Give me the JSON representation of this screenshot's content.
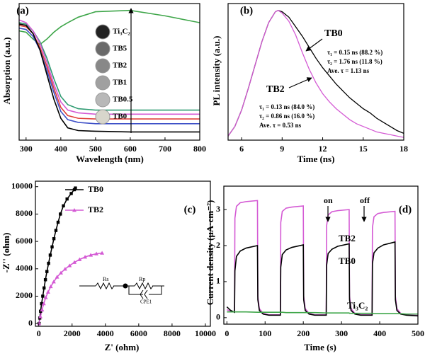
{
  "chart_data": [
    {
      "type": "line",
      "title": "(a)",
      "xlabel": "Wavelength (nm)",
      "ylabel": "Absorption (a.u.)",
      "x": [
        280,
        300,
        320,
        340,
        360,
        380,
        400,
        420,
        450,
        500,
        600,
        700,
        800
      ],
      "xlim": [
        280,
        800
      ],
      "xticks": [
        300,
        400,
        500,
        600,
        700,
        800
      ],
      "ylim": [
        0,
        1
      ],
      "series": [
        {
          "name": "Ti₃C₂",
          "color": "#3fa64a",
          "values": [
            0.8,
            0.79,
            0.74,
            0.7,
            0.74,
            0.79,
            0.83,
            0.86,
            0.9,
            0.94,
            0.95,
            0.91,
            0.86
          ]
        },
        {
          "name": "TB5",
          "color": "#2f9b72",
          "values": [
            0.86,
            0.85,
            0.8,
            0.72,
            0.6,
            0.45,
            0.32,
            0.26,
            0.23,
            0.22,
            0.22,
            0.22,
            0.22
          ]
        },
        {
          "name": "TB2",
          "color": "#d45ad4",
          "values": [
            0.88,
            0.86,
            0.8,
            0.71,
            0.57,
            0.41,
            0.28,
            0.22,
            0.2,
            0.19,
            0.19,
            0.19,
            0.19
          ]
        },
        {
          "name": "TB1",
          "color": "#e0403a",
          "values": [
            0.84,
            0.83,
            0.78,
            0.68,
            0.54,
            0.38,
            0.24,
            0.18,
            0.16,
            0.155,
            0.155,
            0.155,
            0.155
          ]
        },
        {
          "name": "TB0.5",
          "color": "#3f51c8",
          "values": [
            0.82,
            0.81,
            0.76,
            0.66,
            0.51,
            0.35,
            0.21,
            0.15,
            0.13,
            0.12,
            0.12,
            0.12,
            0.12
          ]
        },
        {
          "name": "TB0",
          "color": "#000000",
          "values": [
            0.85,
            0.84,
            0.78,
            0.66,
            0.48,
            0.3,
            0.16,
            0.09,
            0.07,
            0.065,
            0.06,
            0.06,
            0.06
          ]
        }
      ]
    },
    {
      "type": "line",
      "title": "(b)",
      "xlabel": "Time (ns)",
      "ylabel": "PL intensity (a.u.)",
      "x": [
        5,
        5.5,
        6,
        6.5,
        7,
        7.5,
        8,
        8.5,
        8.7,
        9,
        9.5,
        10,
        10.5,
        11,
        11.5,
        12,
        12.5,
        13,
        13.5,
        14,
        14.5,
        15,
        15.5,
        16,
        16.5,
        17,
        17.5,
        18
      ],
      "xlim": [
        5,
        18
      ],
      "xticks": [
        6,
        9,
        12,
        15,
        18
      ],
      "ylim": [
        0,
        1
      ],
      "series": [
        {
          "name": "TB0",
          "color": "#000000",
          "values": [
            0.03,
            0.1,
            0.22,
            0.38,
            0.55,
            0.72,
            0.86,
            0.94,
            0.95,
            0.94,
            0.9,
            0.83,
            0.76,
            0.68,
            0.6,
            0.53,
            0.47,
            0.41,
            0.36,
            0.31,
            0.27,
            0.23,
            0.2,
            0.16,
            0.13,
            0.1,
            0.07,
            0.05
          ]
        },
        {
          "name": "TB2",
          "color": "#d45ad4",
          "values": [
            0.03,
            0.1,
            0.22,
            0.38,
            0.55,
            0.72,
            0.86,
            0.94,
            0.95,
            0.93,
            0.87,
            0.77,
            0.64,
            0.52,
            0.42,
            0.34,
            0.28,
            0.23,
            0.19,
            0.15,
            0.12,
            0.1,
            0.08,
            0.06,
            0.05,
            0.04,
            0.03,
            0.02
          ]
        }
      ],
      "annotations": [
        "TB0",
        "τ₁ = 0.15 ns (88.2 %)",
        "τ₂ = 1.76 ns (11.8 %)",
        "Ave. τ = 1.13 ns",
        "TB2",
        "τ₁ = 0.13 ns (84.0 %)",
        "τ₂ = 0.86 ns (16.0 %)",
        "Ave. τ = 0.53 ns"
      ]
    },
    {
      "type": "line",
      "title": "(c)",
      "xlabel": "Z' (ohm)",
      "ylabel": "-Z'' (ohm)",
      "xlim": [
        -200,
        10300
      ],
      "xticks": [
        0,
        2000,
        4000,
        6000,
        8000,
        10000
      ],
      "ylim": [
        -200,
        10400
      ],
      "yticks": [
        0,
        2000,
        4000,
        6000,
        8000,
        10000
      ],
      "legend": "upper left",
      "series": [
        {
          "name": "TB0",
          "color": "#000000",
          "marker": "square",
          "x": [
            20,
            60,
            110,
            170,
            240,
            320,
            400,
            490,
            590,
            690,
            800,
            910,
            1030,
            1160,
            1300,
            1480,
            1700,
            1950,
            2200
          ],
          "values": [
            0,
            400,
            900,
            1450,
            2000,
            2600,
            3200,
            3800,
            4400,
            5000,
            5600,
            6200,
            6800,
            7400,
            8000,
            8600,
            9100,
            9500,
            9900
          ]
        },
        {
          "name": "TB2",
          "color": "#d45ad4",
          "marker": "triangle",
          "x": [
            20,
            100,
            200,
            300,
            420,
            560,
            720,
            900,
            1100,
            1330,
            1580,
            1850,
            2140,
            2450,
            2780,
            3120,
            3460,
            3800
          ],
          "values": [
            0,
            500,
            1000,
            1450,
            1900,
            2300,
            2700,
            3050,
            3400,
            3700,
            3980,
            4230,
            4470,
            4680,
            4860,
            5000,
            5100,
            5150
          ]
        }
      ],
      "annotations": [
        "Rs",
        "Rp",
        "CPE1"
      ]
    },
    {
      "type": "line",
      "title": "(d)",
      "xlabel": "Time (s)",
      "ylabel": "Current density (μA·cm⁻²)",
      "x": [
        0,
        10,
        20,
        21,
        25,
        35,
        50,
        80,
        81,
        85,
        95,
        110,
        140,
        141,
        145,
        155,
        170,
        200,
        201,
        205,
        215,
        230,
        260,
        261,
        265,
        275,
        290,
        320,
        321,
        325,
        335,
        350,
        380,
        381,
        385,
        395,
        410,
        440,
        441,
        445,
        455,
        470,
        500
      ],
      "xlim": [
        -8,
        500
      ],
      "xticks": [
        0,
        100,
        200,
        300,
        400,
        500
      ],
      "ylim": [
        -0.18,
        3.65
      ],
      "yticks": [
        0,
        1,
        2,
        3
      ],
      "series": [
        {
          "name": "TB2",
          "color": "#d45ad4",
          "values": [
            0.22,
            0.18,
            0.15,
            2.76,
            3.09,
            3.19,
            3.22,
            3.25,
            0.6,
            0.25,
            0.12,
            0.08,
            0.08,
            2.64,
            2.95,
            3.04,
            3.07,
            3.1,
            0.6,
            0.25,
            0.12,
            0.08,
            0.08,
            2.55,
            2.85,
            2.94,
            2.97,
            3.0,
            0.6,
            0.25,
            0.12,
            0.08,
            0.08,
            2.5,
            2.8,
            2.89,
            2.92,
            2.95,
            0.6,
            0.25,
            0.12,
            0.08,
            0.06
          ]
        },
        {
          "name": "TB0",
          "color": "#000000",
          "values": [
            0.3,
            0.2,
            0.15,
            1.3,
            1.7,
            1.85,
            1.93,
            2.0,
            0.5,
            0.2,
            0.1,
            0.07,
            0.07,
            1.4,
            1.75,
            1.88,
            1.95,
            2.02,
            0.5,
            0.2,
            0.1,
            0.07,
            0.07,
            1.45,
            1.78,
            1.9,
            1.98,
            2.05,
            0.5,
            0.2,
            0.1,
            0.07,
            0.07,
            1.5,
            1.8,
            1.93,
            2.02,
            2.1,
            0.5,
            0.2,
            0.1,
            0.07,
            0.05
          ]
        },
        {
          "name": "Ti₃C₂",
          "color": "#3fa64a",
          "values": [
            0.16,
            0.16,
            0.16,
            0.16,
            0.16,
            0.16,
            0.16,
            0.15,
            0.15,
            0.15,
            0.15,
            0.15,
            0.15,
            0.15,
            0.15,
            0.14,
            0.14,
            0.14,
            0.14,
            0.14,
            0.14,
            0.14,
            0.13,
            0.13,
            0.13,
            0.13,
            0.13,
            0.13,
            0.12,
            0.12,
            0.12,
            0.12,
            0.12,
            0.12,
            0.11,
            0.11,
            0.11,
            0.11,
            0.11,
            0.11,
            0.11,
            0.1,
            0.1
          ]
        }
      ],
      "annotations": [
        "on",
        "off",
        "TB2",
        "TB0",
        "Ti₃C₂"
      ]
    }
  ]
}
